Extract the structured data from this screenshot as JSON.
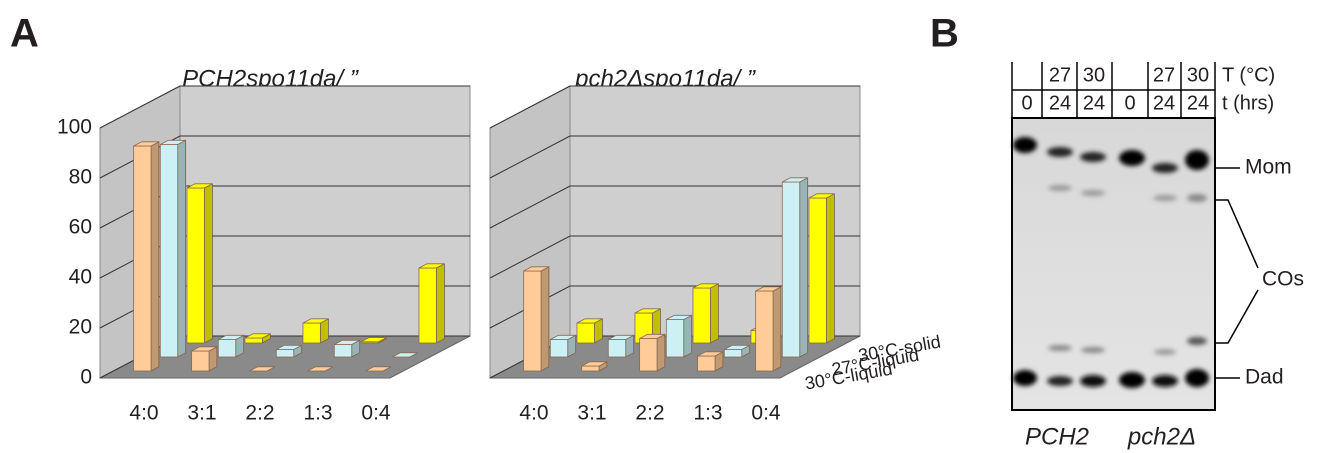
{
  "panel_labels": [
    "A",
    "B"
  ],
  "chart_data": [
    {
      "type": "bar3d",
      "title": "PCH2spo11da/ ”",
      "categories": [
        "4:0",
        "3:1",
        "2:2",
        "1:3",
        "0:4"
      ],
      "series": [
        {
          "color": "#ffcc99",
          "values": [
            90,
            8,
            0,
            0,
            0
          ]
        },
        {
          "color": "#cdf0f5",
          "values": [
            85,
            7,
            3,
            5,
            0
          ]
        },
        {
          "color": "#ffff00",
          "values": [
            62,
            2,
            8,
            0.5,
            30
          ]
        }
      ],
      "ylim": [
        0,
        100
      ],
      "yticks": [
        0,
        20,
        40,
        60,
        80,
        100
      ],
      "tick_labels": true
    },
    {
      "type": "bar3d",
      "title": "pch2Δspo11da/ ”",
      "categories": [
        "4:0",
        "3:1",
        "2:2",
        "1:3",
        "0:4"
      ],
      "series": [
        {
          "name": "30°C-liquid",
          "color": "#ffcc99",
          "values": [
            40,
            2,
            13,
            6,
            32
          ]
        },
        {
          "name": "27°C-liquid",
          "color": "#cdf0f5",
          "values": [
            7,
            7,
            15,
            3,
            70
          ]
        },
        {
          "name": "30°C-solid",
          "color": "#ffff00",
          "values": [
            8,
            12,
            22,
            5,
            58
          ]
        }
      ],
      "ylim": [
        0,
        100
      ],
      "yticks": [
        0,
        20,
        40,
        60,
        80,
        100
      ],
      "tick_labels": false
    }
  ],
  "gel": {
    "temperature_label": "T (°C)",
    "time_label": "t (hrs)",
    "temperature": [
      null,
      "27",
      "30",
      null,
      "27",
      "30"
    ],
    "time": [
      "0",
      "24",
      "24",
      "0",
      "24",
      "24"
    ],
    "bands": [
      "Mom",
      "COs",
      "Dad"
    ],
    "strains": [
      "PCH2",
      "pch2Δ"
    ]
  }
}
